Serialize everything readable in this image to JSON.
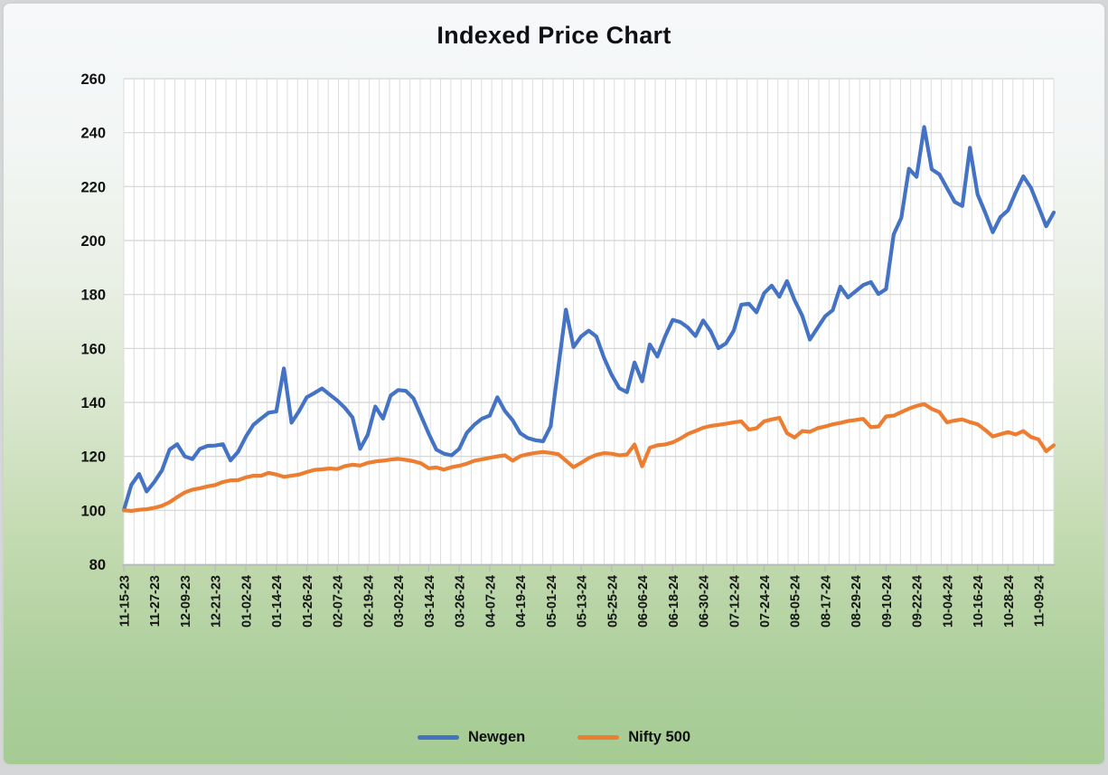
{
  "page": {
    "outer_background": "#d5d6d7"
  },
  "chart": {
    "title": "Indexed Price Chart",
    "legend": [
      {
        "name": "Newgen",
        "color": "#4472C4"
      },
      {
        "name": "Nifty 500",
        "color": "#ED7D31"
      }
    ]
  },
  "chart_data": {
    "type": "line",
    "title": "Indexed Price Chart",
    "grid": true,
    "legend_position": "bottom",
    "ylim": [
      80,
      260
    ],
    "y_ticks": [
      260,
      240,
      220,
      200,
      180,
      160,
      140,
      120,
      100,
      80
    ],
    "x_tick_labels": [
      "11-15-23",
      "11-27-23",
      "12-09-23",
      "12-21-23",
      "01-02-24",
      "01-14-24",
      "01-26-24",
      "02-07-24",
      "02-19-24",
      "03-02-24",
      "03-14-24",
      "03-26-24",
      "04-07-24",
      "04-19-24",
      "05-01-24",
      "05-13-24",
      "05-25-24",
      "06-06-24",
      "06-18-24",
      "06-30-24",
      "07-12-24",
      "07-24-24",
      "08-05-24",
      "08-17-24",
      "08-29-24",
      "09-10-24",
      "09-22-24",
      "10-04-24",
      "10-16-24",
      "10-28-24",
      "11-09-24"
    ],
    "x_ticks_every_n_points": 4,
    "x": [
      "11-15-23",
      "11-18-23",
      "11-21-23",
      "11-24-23",
      "11-27-23",
      "11-30-23",
      "12-03-23",
      "12-06-23",
      "12-09-23",
      "12-12-23",
      "12-15-23",
      "12-18-23",
      "12-21-23",
      "12-24-23",
      "12-27-23",
      "12-30-23",
      "01-02-24",
      "01-05-24",
      "01-08-24",
      "01-11-24",
      "01-14-24",
      "01-17-24",
      "01-20-24",
      "01-23-24",
      "01-26-24",
      "01-29-24",
      "02-01-24",
      "02-04-24",
      "02-07-24",
      "02-10-24",
      "02-13-24",
      "02-16-24",
      "02-19-24",
      "02-22-24",
      "02-25-24",
      "02-28-24",
      "03-02-24",
      "03-05-24",
      "03-08-24",
      "03-11-24",
      "03-14-24",
      "03-17-24",
      "03-20-24",
      "03-23-24",
      "03-26-24",
      "03-29-24",
      "04-01-24",
      "04-04-24",
      "04-07-24",
      "04-10-24",
      "04-13-24",
      "04-16-24",
      "04-19-24",
      "04-22-24",
      "04-25-24",
      "04-28-24",
      "05-01-24",
      "05-04-24",
      "05-07-24",
      "05-10-24",
      "05-13-24",
      "05-16-24",
      "05-19-24",
      "05-22-24",
      "05-25-24",
      "05-28-24",
      "05-31-24",
      "06-03-24",
      "06-06-24",
      "06-09-24",
      "06-12-24",
      "06-15-24",
      "06-18-24",
      "06-21-24",
      "06-24-24",
      "06-27-24",
      "06-30-24",
      "07-03-24",
      "07-06-24",
      "07-09-24",
      "07-12-24",
      "07-15-24",
      "07-18-24",
      "07-21-24",
      "07-24-24",
      "07-27-24",
      "07-30-24",
      "08-02-24",
      "08-05-24",
      "08-08-24",
      "08-11-24",
      "08-14-24",
      "08-17-24",
      "08-20-24",
      "08-23-24",
      "08-26-24",
      "08-29-24",
      "09-01-24",
      "09-04-24",
      "09-07-24",
      "09-10-24",
      "09-13-24",
      "09-16-24",
      "09-19-24",
      "09-22-24",
      "09-25-24",
      "09-28-24",
      "10-01-24",
      "10-04-24",
      "10-07-24",
      "10-10-24",
      "10-13-24",
      "10-16-24",
      "10-19-24",
      "10-22-24",
      "10-25-24",
      "10-28-24",
      "10-31-24",
      "11-03-24",
      "11-06-24",
      "11-09-24",
      "11-12-24",
      "11-15-24"
    ],
    "series": [
      {
        "name": "Newgen",
        "data_name": "newgen-line",
        "color": "#4472C4",
        "values": [
          100,
          109.5,
          113.5,
          107,
          110.5,
          114.8,
          122.5,
          124.5,
          120,
          119,
          122.8,
          123.9,
          124,
          124.5,
          118.5,
          121.7,
          127.3,
          131.7,
          134,
          136.2,
          136.6,
          152.6,
          132.5,
          136.8,
          141.9,
          143.5,
          145.2,
          142.9,
          140.7,
          138,
          134.5,
          122.8,
          128,
          138.5,
          134,
          142.5,
          144.6,
          144.3,
          141.5,
          135,
          128.4,
          122.5,
          121,
          120.4,
          122.8,
          128.7,
          131.8,
          134,
          135.1,
          141.9,
          136.8,
          133.4,
          128.6,
          126.8,
          126,
          125.6,
          131.2,
          153,
          174.4,
          160.5,
          164.5,
          166.6,
          164.4,
          156.5,
          150.2,
          145.3,
          143.8,
          154.8,
          147.8,
          161.5,
          157,
          164.3,
          170.6,
          169.8,
          167.8,
          164.6,
          170.4,
          166.3,
          160.1,
          161.9,
          166.5,
          176.2,
          176.6,
          173.4,
          180.5,
          183.3,
          179.2,
          185,
          177.9,
          172.1,
          163.3,
          167.6,
          171.9,
          174.2,
          182.9,
          178.9,
          181.2,
          183.5,
          184.6,
          180.2,
          182,
          202.3,
          208.4,
          226.6,
          223.6,
          242.1,
          226.4,
          224.5,
          219.4,
          214.3,
          212.8,
          234.4,
          217.1,
          210.4,
          203.1,
          208.7,
          211.2,
          217.8,
          223.8,
          219.6,
          212.6,
          205.3,
          210.4
        ]
      },
      {
        "name": "Nifty 500",
        "data_name": "nifty500-line",
        "color": "#ED7D31",
        "values": [
          100,
          99.8,
          100.2,
          100.4,
          100.9,
          101.7,
          103,
          104.9,
          106.6,
          107.7,
          108.2,
          108.9,
          109.4,
          110.5,
          111.1,
          111.2,
          112.2,
          112.8,
          112.8,
          113.9,
          113.3,
          112.4,
          112.8,
          113.3,
          114.2,
          115,
          115.2,
          115.5,
          115.3,
          116.4,
          116.9,
          116.6,
          117.6,
          118.1,
          118.4,
          118.8,
          119.1,
          118.7,
          118.2,
          117.4,
          115.6,
          115.9,
          115.1,
          116,
          116.5,
          117.3,
          118.4,
          118.9,
          119.5,
          120,
          120.4,
          118.4,
          120.1,
          120.8,
          121.3,
          121.6,
          121.3,
          120.8,
          118.4,
          116,
          117.6,
          119.4,
          120.6,
          121.2,
          121,
          120.4,
          120.7,
          124.4,
          116.3,
          123.2,
          124.1,
          124.4,
          125.2,
          126.6,
          128.3,
          129.4,
          130.6,
          131.3,
          131.7,
          132.1,
          132.6,
          133,
          129.9,
          130.4,
          133,
          133.7,
          134.3,
          128.6,
          127,
          129.4,
          129.1,
          130.4,
          131.1,
          131.9,
          132.4,
          133.1,
          133.5,
          133.9,
          130.8,
          131.1,
          134.8,
          135.1,
          136.4,
          137.7,
          138.7,
          139.4,
          137.6,
          136.4,
          132.6,
          133.3,
          133.7,
          132.7,
          131.9,
          129.8,
          127.4,
          128.2,
          129,
          128.1,
          129.4,
          127.2,
          126.3,
          121.9,
          124.1
        ]
      }
    ]
  }
}
